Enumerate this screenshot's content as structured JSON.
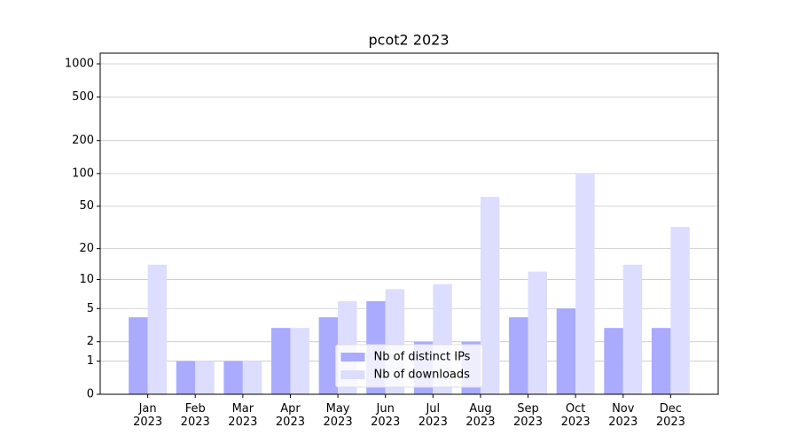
{
  "chart_data": {
    "type": "bar",
    "title": "pcot2 2023",
    "categories": [
      "Jan 2023",
      "Feb 2023",
      "Mar 2023",
      "Apr 2023",
      "May 2023",
      "Jun 2023",
      "Jul 2023",
      "Aug 2023",
      "Sep 2023",
      "Oct 2023",
      "Nov 2023",
      "Dec 2023"
    ],
    "series": [
      {
        "name": "Nb of distinct IPs",
        "color": "#aaaaff",
        "values": [
          4,
          1,
          1,
          3,
          4,
          6,
          2,
          2,
          4,
          5,
          3,
          3
        ]
      },
      {
        "name": "Nb of downloads",
        "color": "#ddddff",
        "values": [
          14,
          1,
          1,
          3,
          6,
          8,
          9,
          61,
          12,
          100,
          14,
          32
        ]
      }
    ],
    "yscale": "log1p",
    "ylim": [
      0,
      1250
    ],
    "yticks": [
      0,
      1,
      2,
      5,
      10,
      20,
      50,
      100,
      200,
      500,
      1000
    ],
    "grid": true,
    "legend": "lower center"
  }
}
